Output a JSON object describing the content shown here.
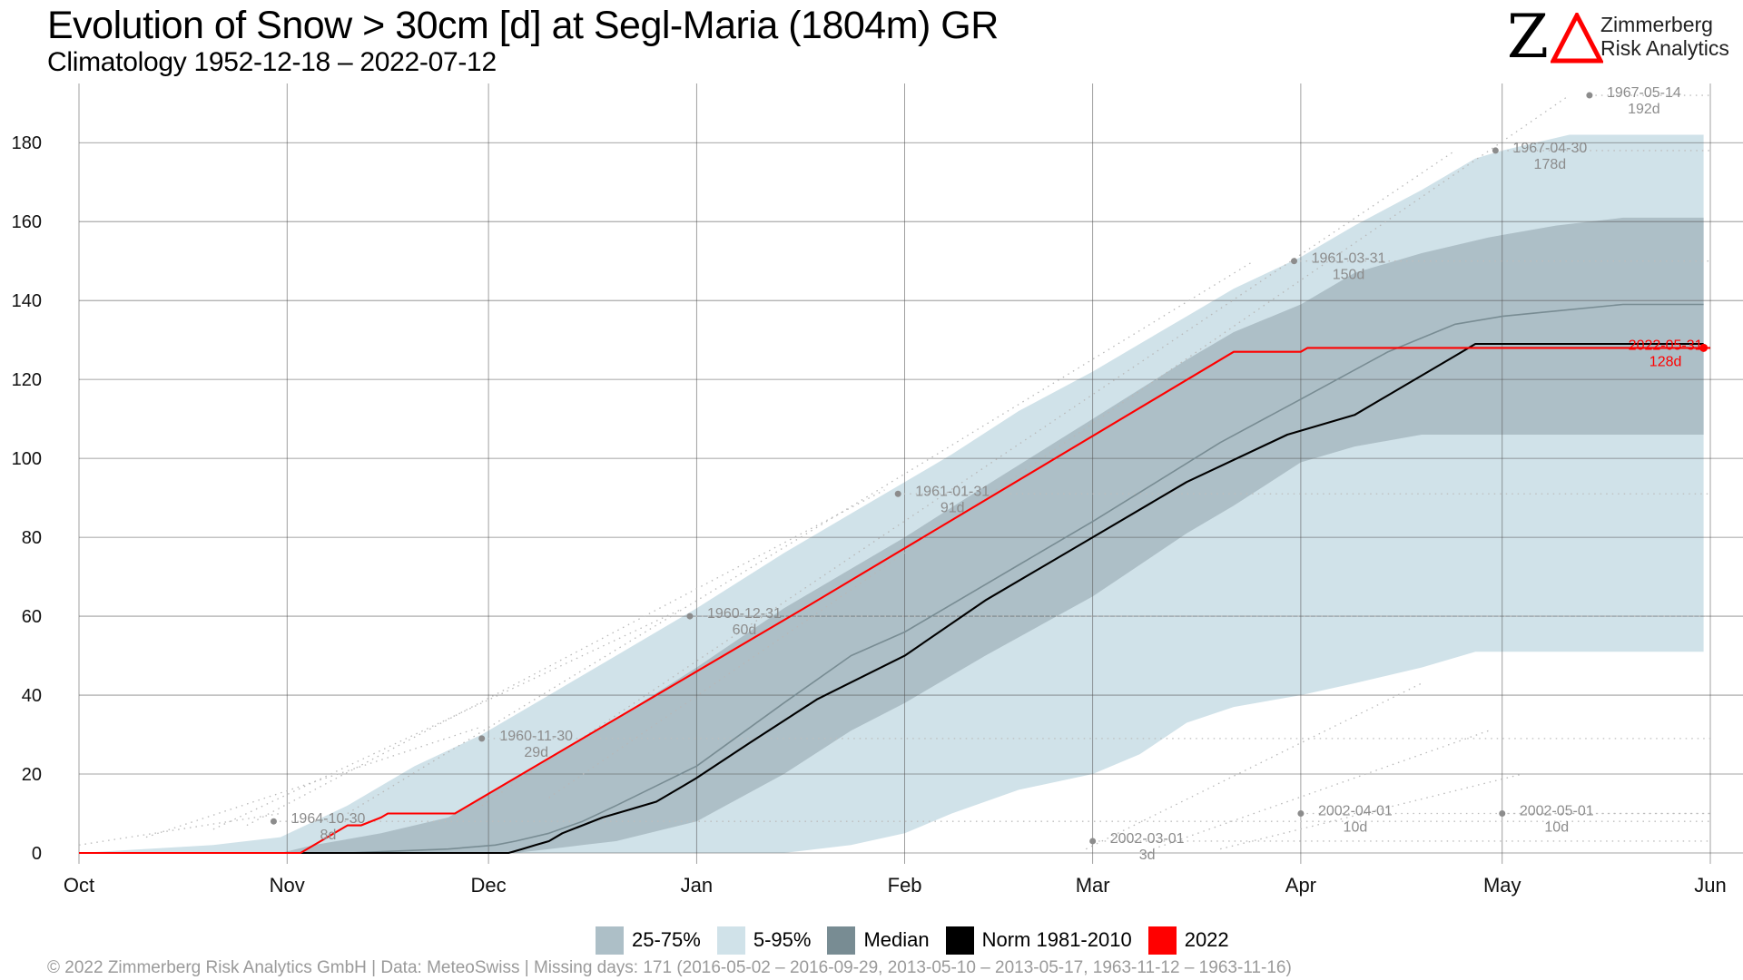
{
  "title": "Evolution of Snow > 30cm [d] at Segl-Maria (1804m) GR",
  "subtitle": "Climatology 1952-12-18 – 2022-07-12",
  "logo": {
    "mark_text": "Z",
    "mark_icon": "red-triangle-icon",
    "name_line1": "Zimmerberg",
    "name_line2": "Risk Analytics"
  },
  "colors": {
    "band_25_75": "#adbfc7",
    "band_5_95": "#d0e2e9",
    "median": "#788c93",
    "norm": "#000000",
    "year_2022": "#ff0000",
    "annotation": "#8c8c8c",
    "grid": "#555555"
  },
  "legend": [
    {
      "label": "25-75%",
      "color_key": "band_25_75"
    },
    {
      "label": "5-95%",
      "color_key": "band_5_95"
    },
    {
      "label": "Median",
      "color_key": "median"
    },
    {
      "label": "Norm 1981-2010",
      "color_key": "norm"
    },
    {
      "label": "2022",
      "color_key": "year_2022"
    }
  ],
  "footer": "©  2022 Zimmerberg Risk Analytics GmbH | Data: MeteoSwiss | Missing days: 171 (2016-05-02 – 2016-09-29, 2013-05-10 – 2013-05-17, 1963-11-12 – 1963-11-16)",
  "chart_data": {
    "type": "area",
    "x_unit": "days since Oct 1",
    "xlim": [
      0,
      243
    ],
    "ylim": [
      0,
      195
    ],
    "x_ticks": [
      {
        "label": "Oct",
        "day": 0
      },
      {
        "label": "Nov",
        "day": 31
      },
      {
        "label": "Dec",
        "day": 61
      },
      {
        "label": "Jan",
        "day": 92
      },
      {
        "label": "Feb",
        "day": 123
      },
      {
        "label": "Mar",
        "day": 151
      },
      {
        "label": "Apr",
        "day": 182
      },
      {
        "label": "May",
        "day": 212
      },
      {
        "label": "Jun",
        "day": 243
      }
    ],
    "y_ticks": [
      0,
      20,
      40,
      60,
      80,
      100,
      120,
      140,
      160,
      180
    ],
    "grid": true,
    "legend_position": "bottom",
    "series": [
      {
        "name": "5-95%",
        "kind": "band",
        "x": [
          0,
          20,
          30,
          40,
          50,
          60,
          70,
          80,
          92,
          105,
          115,
          123,
          130,
          140,
          151,
          158,
          165,
          172,
          182,
          190,
          200,
          208,
          212,
          222,
          230,
          242
        ],
        "lower": [
          0,
          0,
          0,
          0,
          0,
          0,
          0,
          0,
          0,
          0,
          2,
          5,
          10,
          16,
          20,
          25,
          33,
          37,
          40,
          43,
          47,
          51,
          51,
          51,
          51,
          51
        ],
        "upper": [
          0,
          2,
          4,
          12,
          22,
          30,
          40,
          50,
          62,
          76,
          86,
          94,
          101,
          112,
          122,
          129,
          136,
          143,
          151,
          159,
          168,
          176,
          178,
          182,
          182,
          182
        ]
      },
      {
        "name": "25-75%",
        "kind": "band",
        "x": [
          0,
          30,
          35,
          45,
          55,
          60,
          65,
          70,
          75,
          80,
          92,
          105,
          115,
          123,
          135,
          151,
          165,
          172,
          182,
          190,
          200,
          210,
          220,
          230,
          242
        ],
        "lower": [
          0,
          0,
          0,
          0,
          0,
          0,
          0,
          1,
          2,
          3,
          8,
          20,
          31,
          38,
          50,
          65,
          81,
          88,
          99,
          103,
          106,
          106,
          106,
          106,
          106
        ],
        "upper": [
          0,
          0,
          2,
          5,
          9,
          14,
          19,
          24,
          29,
          34,
          47,
          62,
          72,
          80,
          93,
          110,
          125,
          132,
          139,
          147,
          152,
          156,
          159,
          161,
          161
        ]
      },
      {
        "name": "Median",
        "x": [
          0,
          40,
          55,
          62,
          65,
          70,
          75,
          80,
          92,
          105,
          115,
          123,
          140,
          151,
          170,
          182,
          195,
          205,
          212,
          218,
          230,
          242
        ],
        "y": [
          0,
          0,
          1,
          2,
          3,
          5,
          8,
          12,
          22,
          38,
          50,
          56,
          73,
          84,
          104,
          115,
          127,
          134,
          136,
          137,
          139,
          139
        ]
      },
      {
        "name": "Norm 1981-2010",
        "x": [
          0,
          64,
          66,
          68,
          70,
          72,
          75,
          78,
          82,
          86,
          90,
          92,
          100,
          110,
          123,
          135,
          151,
          165,
          180,
          190,
          205,
          208,
          230,
          242
        ],
        "y": [
          0,
          0,
          1,
          2,
          3,
          5,
          7,
          9,
          11,
          13,
          17,
          19,
          28,
          39,
          50,
          64,
          80,
          94,
          106,
          111,
          126,
          129,
          129,
          129
        ]
      },
      {
        "name": "2022",
        "x": [
          0,
          33,
          40,
          42,
          45,
          46,
          56,
          108,
          172,
          182,
          183,
          243
        ],
        "y": [
          0,
          0,
          7,
          7,
          9,
          10,
          10,
          62,
          127,
          127,
          128,
          128
        ]
      }
    ],
    "annotations": [
      {
        "date": "1964-10-30",
        "value_label": "8d",
        "x": 29,
        "y": 8
      },
      {
        "date": "1960-11-30",
        "value_label": "29d",
        "x": 60,
        "y": 29
      },
      {
        "date": "1960-12-31",
        "value_label": "60d",
        "x": 91,
        "y": 60
      },
      {
        "date": "1961-01-31",
        "value_label": "91d",
        "x": 122,
        "y": 91
      },
      {
        "date": "1961-03-31",
        "value_label": "150d",
        "x": 181,
        "y": 150
      },
      {
        "date": "1967-04-30",
        "value_label": "178d",
        "x": 211,
        "y": 178
      },
      {
        "date": "1967-05-14",
        "value_label": "192d",
        "x": 225,
        "y": 192
      },
      {
        "date": "2002-03-01",
        "value_label": "3d",
        "x": 151,
        "y": 3
      },
      {
        "date": "2002-04-01",
        "value_label": "10d",
        "x": 182,
        "y": 10
      },
      {
        "date": "2002-05-01",
        "value_label": "10d",
        "x": 212,
        "y": 10
      },
      {
        "date": "2022-05-31",
        "value_label": "128d",
        "x": 242,
        "y": 128,
        "highlight": true
      }
    ]
  }
}
